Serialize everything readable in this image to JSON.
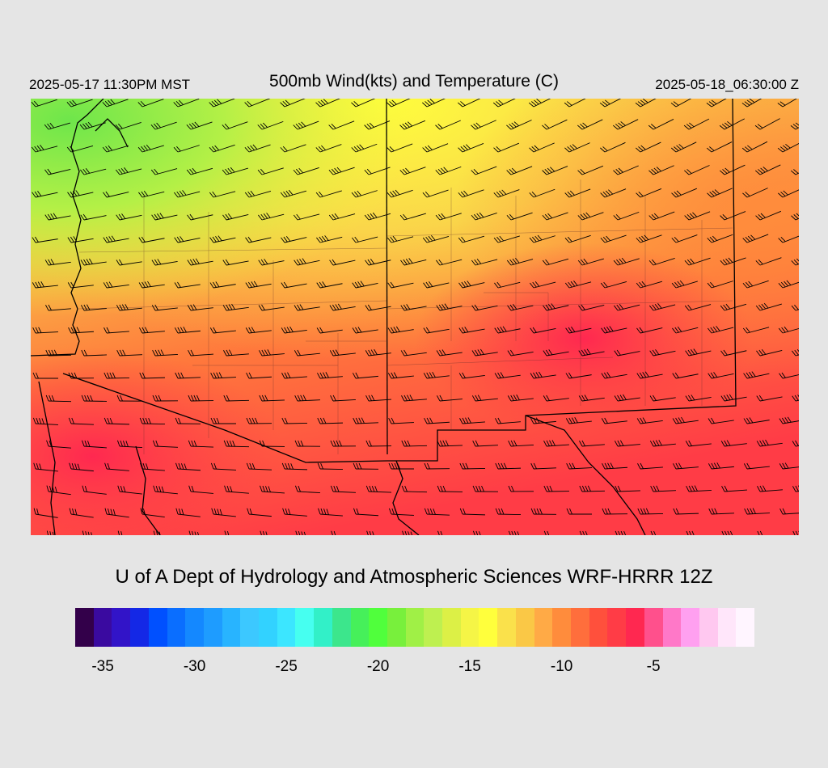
{
  "header": {
    "local_time": "2025-05-17 11:30PM MST",
    "title": "500mb Wind(kts) and Temperature (C)",
    "valid_time": "2025-05-18_06:30:00 Z"
  },
  "credit": "U of A Dept of Hydrology and Atmospheric Sciences WRF-HRRR 12Z",
  "map": {
    "field": "500mb temperature (C) with wind barbs (kts)",
    "fill_regions": [
      {
        "name": "northwest-cold",
        "temp_c": -20
      },
      {
        "name": "northern-band",
        "temp_c": -15
      },
      {
        "name": "central",
        "temp_c": -11
      },
      {
        "name": "southern",
        "temp_c": -8
      }
    ],
    "barb_color": "#000000",
    "border_color": "#000000"
  },
  "colorbar": {
    "colors": [
      "#33004a",
      "#3a0aa0",
      "#3214c8",
      "#1428e6",
      "#0050ff",
      "#0a6eff",
      "#1488ff",
      "#1e9cff",
      "#28b4ff",
      "#3cc8ff",
      "#32d2ff",
      "#3ce6ff",
      "#46fff0",
      "#32f0c8",
      "#3ce68c",
      "#46f05a",
      "#50ff3c",
      "#78f03c",
      "#a0f046",
      "#bef050",
      "#dcf046",
      "#f5f546",
      "#ffff3c",
      "#fae14b",
      "#fac846",
      "#ffaa46",
      "#ff8c3c",
      "#ff6e3c",
      "#ff503c",
      "#ff3c46",
      "#ff2850",
      "#ff508c",
      "#ff78c8",
      "#ffa0f0",
      "#ffc8f0",
      "#ffe6fa",
      "#fff5ff"
    ],
    "labels": [
      "-35",
      "-30",
      "-25",
      "-20",
      "-15",
      "-10",
      "-5"
    ],
    "label_values": [
      -35,
      -30,
      -25,
      -20,
      -15,
      -10,
      -5
    ],
    "min": -36,
    "max": -1
  }
}
